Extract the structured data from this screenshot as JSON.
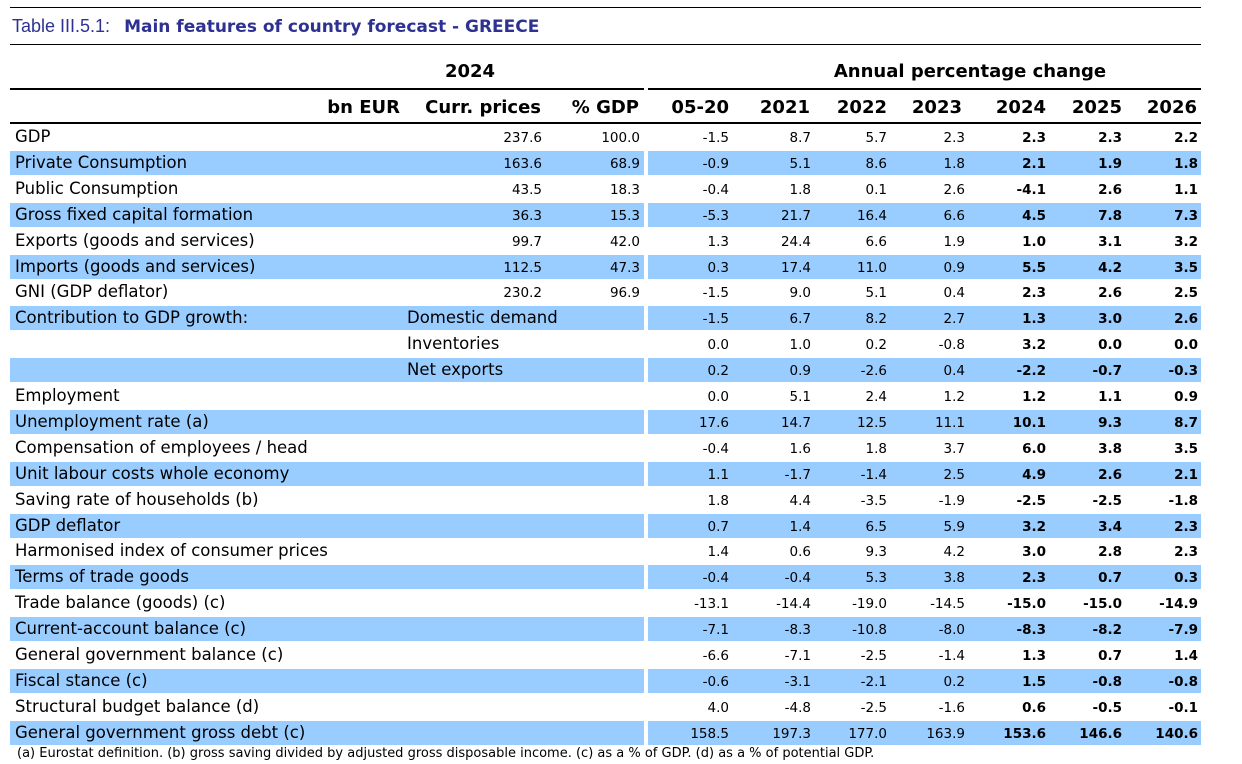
{
  "title": {
    "label": "Table III.5.1:",
    "text": "Main features of country forecast - GREECE"
  },
  "header": {
    "group_left": "2024",
    "group_right": "Annual percentage change",
    "columns": [
      "bn EUR",
      "Curr. prices",
      "% GDP",
      "05-20",
      "2021",
      "2022",
      "2023",
      "2024",
      "2025",
      "2026"
    ]
  },
  "rows": [
    {
      "label": "GDP",
      "sub": "",
      "curr": "237.6",
      "gdp": "100.0",
      "values": [
        "-1.5",
        "8.7",
        "5.7",
        "2.3",
        "2.3",
        "2.3",
        "2.2"
      ]
    },
    {
      "label": "Private Consumption",
      "sub": "",
      "curr": "163.6",
      "gdp": "68.9",
      "values": [
        "-0.9",
        "5.1",
        "8.6",
        "1.8",
        "2.1",
        "1.9",
        "1.8"
      ]
    },
    {
      "label": "Public Consumption",
      "sub": "",
      "curr": "43.5",
      "gdp": "18.3",
      "values": [
        "-0.4",
        "1.8",
        "0.1",
        "2.6",
        "-4.1",
        "2.6",
        "1.1"
      ]
    },
    {
      "label": "Gross fixed capital formation",
      "sub": "",
      "curr": "36.3",
      "gdp": "15.3",
      "values": [
        "-5.3",
        "21.7",
        "16.4",
        "6.6",
        "4.5",
        "7.8",
        "7.3"
      ]
    },
    {
      "label": "Exports (goods and services)",
      "sub": "",
      "curr": "99.7",
      "gdp": "42.0",
      "values": [
        "1.3",
        "24.4",
        "6.6",
        "1.9",
        "1.0",
        "3.1",
        "3.2"
      ]
    },
    {
      "label": "Imports (goods and services)",
      "sub": "",
      "curr": "112.5",
      "gdp": "47.3",
      "values": [
        "0.3",
        "17.4",
        "11.0",
        "0.9",
        "5.5",
        "4.2",
        "3.5"
      ]
    },
    {
      "label": "GNI (GDP deflator)",
      "sub": "",
      "curr": "230.2",
      "gdp": "96.9",
      "values": [
        "-1.5",
        "9.0",
        "5.1",
        "0.4",
        "2.3",
        "2.6",
        "2.5"
      ]
    },
    {
      "label": "Contribution to GDP growth:",
      "sub": "Domestic demand",
      "curr": "",
      "gdp": "",
      "values": [
        "-1.5",
        "6.7",
        "8.2",
        "2.7",
        "1.3",
        "3.0",
        "2.6"
      ]
    },
    {
      "label": "",
      "sub": "Inventories",
      "curr": "",
      "gdp": "",
      "values": [
        "0.0",
        "1.0",
        "0.2",
        "-0.8",
        "3.2",
        "0.0",
        "0.0"
      ]
    },
    {
      "label": "",
      "sub": "Net exports",
      "curr": "",
      "gdp": "",
      "values": [
        "0.2",
        "0.9",
        "-2.6",
        "0.4",
        "-2.2",
        "-0.7",
        "-0.3"
      ]
    },
    {
      "label": "Employment",
      "sub": "",
      "curr": "",
      "gdp": "",
      "values": [
        "0.0",
        "5.1",
        "2.4",
        "1.2",
        "1.2",
        "1.1",
        "0.9"
      ]
    },
    {
      "label": "Unemployment rate (a)",
      "sub": "",
      "curr": "",
      "gdp": "",
      "values": [
        "17.6",
        "14.7",
        "12.5",
        "11.1",
        "10.1",
        "9.3",
        "8.7"
      ]
    },
    {
      "label": "Compensation of employees / head",
      "sub": "",
      "curr": "",
      "gdp": "",
      "values": [
        "-0.4",
        "1.6",
        "1.8",
        "3.7",
        "6.0",
        "3.8",
        "3.5"
      ]
    },
    {
      "label": "Unit labour costs whole economy",
      "sub": "",
      "curr": "",
      "gdp": "",
      "values": [
        "1.1",
        "-1.7",
        "-1.4",
        "2.5",
        "4.9",
        "2.6",
        "2.1"
      ]
    },
    {
      "label": "Saving rate of households (b)",
      "sub": "",
      "curr": "",
      "gdp": "",
      "values": [
        "1.8",
        "4.4",
        "-3.5",
        "-1.9",
        "-2.5",
        "-2.5",
        "-1.8"
      ]
    },
    {
      "label": "GDP deflator",
      "sub": "",
      "curr": "",
      "gdp": "",
      "values": [
        "0.7",
        "1.4",
        "6.5",
        "5.9",
        "3.2",
        "3.4",
        "2.3"
      ]
    },
    {
      "label": "Harmonised index of consumer prices",
      "sub": "",
      "curr": "",
      "gdp": "",
      "values": [
        "1.4",
        "0.6",
        "9.3",
        "4.2",
        "3.0",
        "2.8",
        "2.3"
      ]
    },
    {
      "label": "Terms of trade goods",
      "sub": "",
      "curr": "",
      "gdp": "",
      "values": [
        "-0.4",
        "-0.4",
        "5.3",
        "3.8",
        "2.3",
        "0.7",
        "0.3"
      ]
    },
    {
      "label": "Trade balance (goods) (c)",
      "sub": "",
      "curr": "",
      "gdp": "",
      "values": [
        "-13.1",
        "-14.4",
        "-19.0",
        "-14.5",
        "-15.0",
        "-15.0",
        "-14.9"
      ]
    },
    {
      "label": "Current-account balance (c)",
      "sub": "",
      "curr": "",
      "gdp": "",
      "values": [
        "-7.1",
        "-8.3",
        "-10.8",
        "-8.0",
        "-8.3",
        "-8.2",
        "-7.9"
      ]
    },
    {
      "label": "General government balance (c)",
      "sub": "",
      "curr": "",
      "gdp": "",
      "values": [
        "-6.6",
        "-7.1",
        "-2.5",
        "-1.4",
        "1.3",
        "0.7",
        "1.4"
      ]
    },
    {
      "label": "Fiscal stance (c)",
      "sub": "",
      "curr": "",
      "gdp": "",
      "values": [
        "-0.6",
        "-3.1",
        "-2.1",
        "0.2",
        "1.5",
        "-0.8",
        "-0.8"
      ]
    },
    {
      "label": "Structural budget balance (d)",
      "sub": "",
      "curr": "",
      "gdp": "",
      "values": [
        "4.0",
        "-4.8",
        "-2.5",
        "-1.6",
        "0.6",
        "-0.5",
        "-0.1"
      ]
    },
    {
      "label": "General government gross debt (c)",
      "sub": "",
      "curr": "",
      "gdp": "",
      "values": [
        "158.5",
        "197.3",
        "177.0",
        "163.9",
        "153.6",
        "146.6",
        "140.6"
      ]
    }
  ],
  "footnote": "(a) Eurostat definition.  (b) gross saving divided by adjusted gross disposable income.  (c) as a % of GDP. (d) as a % of potential GDP."
}
